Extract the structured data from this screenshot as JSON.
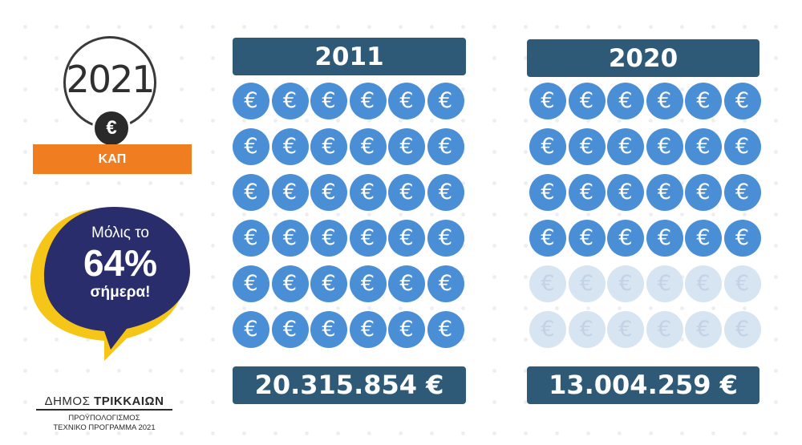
{
  "badge": {
    "year": "2021",
    "euro_symbol": "€",
    "label": "ΚΑΠ"
  },
  "bubble": {
    "line1": "Μόλις το",
    "percent": "64%",
    "line3": "σήμερα!"
  },
  "logo": {
    "title_light": "ΔΗΜΟΣ ",
    "title_bold": "ΤΡΙΚΚΑΙΩΝ",
    "subtitle1": "ΠΡΟΫΠΟΛΟΓΙΣΜΟΣ",
    "subtitle2": "ΤΕΧΝΙΚΟ ΠΡΟΓΡΑΜΜΑ 2021"
  },
  "coin_symbol": "€",
  "colors": {
    "panel_dark": "#2e5a78",
    "coin_blue": "#4a8fd6",
    "coin_faded": "#d7e4f1",
    "orange": "#f07d1f",
    "bubble_navy": "#2a2d6b",
    "bubble_yellow": "#f5c518"
  },
  "panels": [
    {
      "year": "2011",
      "total": "20.315.854 €",
      "filled_coins": 36,
      "total_coins": 36
    },
    {
      "year": "2020",
      "total": "13.004.259 €",
      "filled_coins": 24,
      "total_coins": 36
    }
  ]
}
